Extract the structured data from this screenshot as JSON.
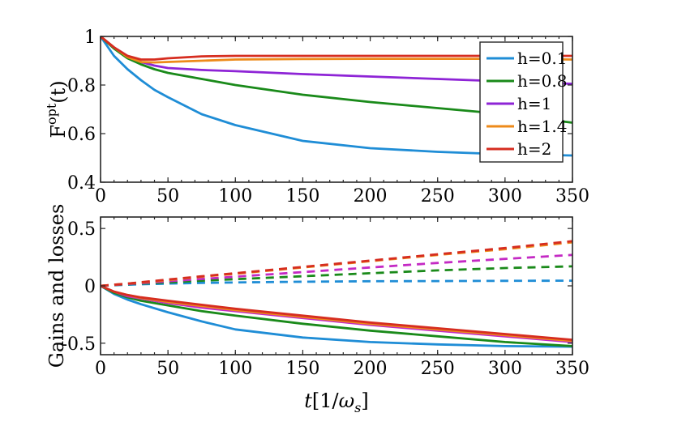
{
  "chart_data": [
    {
      "type": "line",
      "panel": "top",
      "xlabel": "",
      "ylabel_main": "F",
      "ylabel_sup": "opt",
      "ylabel_tail": "(t)",
      "xlim": [
        0,
        350
      ],
      "ylim": [
        0.4,
        1.0
      ],
      "xticks": [
        0,
        50,
        100,
        150,
        200,
        250,
        300,
        350
      ],
      "yticks": [
        0.4,
        0.6,
        0.8,
        1.0
      ],
      "ytick_labels": [
        "0.4",
        "0.6",
        "0.8",
        "1"
      ],
      "legend_position": "top-right",
      "x": [
        0,
        10,
        20,
        30,
        40,
        50,
        75,
        100,
        150,
        200,
        250,
        300,
        350
      ],
      "series": [
        {
          "name": "h=0.1",
          "color": "#1f8dd6",
          "style": "solid",
          "values": [
            1.0,
            0.92,
            0.865,
            0.82,
            0.78,
            0.75,
            0.68,
            0.635,
            0.57,
            0.54,
            0.525,
            0.515,
            0.51
          ]
        },
        {
          "name": "h=0.8",
          "color": "#1a8a1a",
          "style": "solid",
          "values": [
            1.0,
            0.95,
            0.91,
            0.885,
            0.865,
            0.85,
            0.825,
            0.8,
            0.76,
            0.73,
            0.705,
            0.68,
            0.645
          ]
        },
        {
          "name": "h=1",
          "color": "#8e24d6",
          "style": "solid",
          "values": [
            1.0,
            0.955,
            0.92,
            0.895,
            0.88,
            0.87,
            0.862,
            0.857,
            0.845,
            0.835,
            0.825,
            0.815,
            0.805
          ]
        },
        {
          "name": "h=1.4",
          "color": "#ed8a1a",
          "style": "solid",
          "values": [
            1.0,
            0.955,
            0.915,
            0.895,
            0.893,
            0.895,
            0.9,
            0.905,
            0.907,
            0.908,
            0.908,
            0.908,
            0.905
          ]
        },
        {
          "name": "h=2",
          "color": "#d62d20",
          "style": "solid",
          "values": [
            1.0,
            0.955,
            0.92,
            0.905,
            0.905,
            0.91,
            0.918,
            0.92,
            0.92,
            0.92,
            0.92,
            0.92,
            0.92
          ]
        }
      ]
    },
    {
      "type": "line",
      "panel": "bottom",
      "xlabel_var": "t",
      "xlabel_unit_open": "[1/",
      "xlabel_omega": "ω",
      "xlabel_sub": "s",
      "xlabel_close": "]",
      "ylabel": "Gains and losses",
      "xlim": [
        0,
        350
      ],
      "ylim": [
        -0.6,
        0.6
      ],
      "xticks": [
        0,
        50,
        100,
        150,
        200,
        250,
        300,
        350
      ],
      "yticks": [
        -0.5,
        0,
        0.5
      ],
      "ytick_labels": [
        "-0.5",
        "0",
        "0.5"
      ],
      "x": [
        0,
        10,
        20,
        30,
        50,
        75,
        100,
        150,
        200,
        250,
        300,
        350
      ],
      "series": [
        {
          "name": "h=0.1 losses",
          "color": "#1f8dd6",
          "style": "solid",
          "values": [
            0,
            -0.07,
            -0.12,
            -0.16,
            -0.23,
            -0.31,
            -0.38,
            -0.45,
            -0.49,
            -0.51,
            -0.525,
            -0.53
          ]
        },
        {
          "name": "h=0.8 losses",
          "color": "#1a8a1a",
          "style": "solid",
          "values": [
            0,
            -0.06,
            -0.1,
            -0.13,
            -0.17,
            -0.22,
            -0.26,
            -0.33,
            -0.39,
            -0.44,
            -0.49,
            -0.525
          ]
        },
        {
          "name": "h=1 losses",
          "color": "#c42ac4",
          "style": "solid",
          "values": [
            0,
            -0.05,
            -0.09,
            -0.11,
            -0.15,
            -0.19,
            -0.22,
            -0.28,
            -0.34,
            -0.39,
            -0.44,
            -0.49
          ]
        },
        {
          "name": "h=1.4 losses",
          "color": "#ed8a1a",
          "style": "solid",
          "values": [
            0,
            -0.05,
            -0.08,
            -0.105,
            -0.14,
            -0.175,
            -0.21,
            -0.27,
            -0.33,
            -0.38,
            -0.43,
            -0.48
          ]
        },
        {
          "name": "h=2 losses",
          "color": "#d62d20",
          "style": "solid",
          "values": [
            0,
            -0.05,
            -0.08,
            -0.1,
            -0.13,
            -0.165,
            -0.2,
            -0.26,
            -0.32,
            -0.37,
            -0.42,
            -0.47
          ]
        },
        {
          "name": "h=0.1 gains",
          "color": "#1f8dd6",
          "style": "dashed",
          "values": [
            0,
            0.005,
            0.01,
            0.014,
            0.02,
            0.026,
            0.03,
            0.036,
            0.04,
            0.042,
            0.044,
            0.045
          ]
        },
        {
          "name": "h=0.8 gains",
          "color": "#1a8a1a",
          "style": "dashed",
          "values": [
            0,
            0.007,
            0.014,
            0.02,
            0.03,
            0.045,
            0.058,
            0.084,
            0.11,
            0.135,
            0.155,
            0.17
          ]
        },
        {
          "name": "h=1 gains",
          "color": "#c42ac4",
          "style": "dashed",
          "values": [
            0,
            0.008,
            0.016,
            0.024,
            0.04,
            0.06,
            0.08,
            0.12,
            0.16,
            0.2,
            0.235,
            0.27
          ]
        },
        {
          "name": "h=1.4 gains",
          "color": "#ed8a1a",
          "style": "dashed",
          "values": [
            0,
            0.01,
            0.02,
            0.03,
            0.05,
            0.08,
            0.105,
            0.16,
            0.215,
            0.27,
            0.32,
            0.38
          ]
        },
        {
          "name": "h=2 gains",
          "color": "#d62d20",
          "style": "dashed",
          "values": [
            0,
            0.01,
            0.02,
            0.032,
            0.055,
            0.083,
            0.11,
            0.165,
            0.22,
            0.275,
            0.33,
            0.39
          ]
        }
      ]
    }
  ]
}
